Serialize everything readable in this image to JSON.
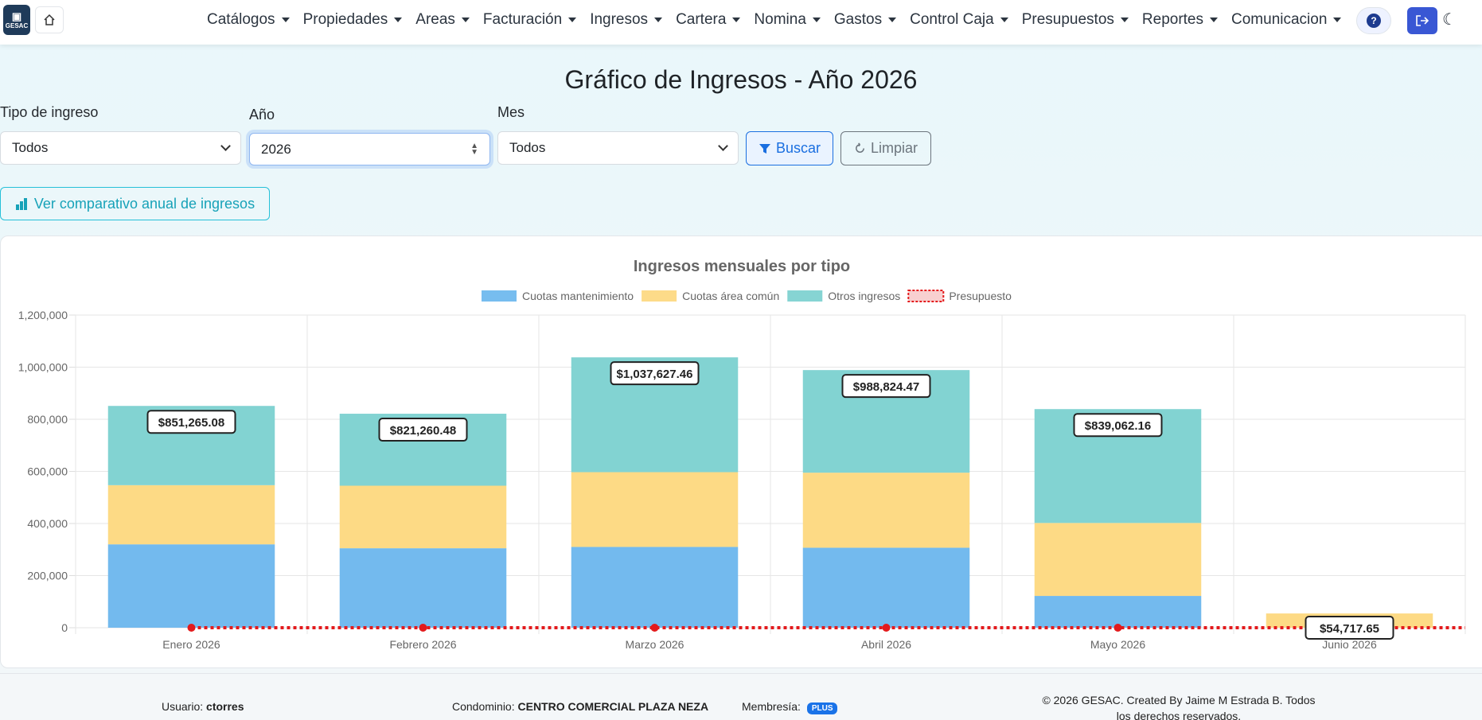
{
  "nav": {
    "brand": "GESAC",
    "menu": [
      "Catálogos",
      "Propiedades",
      "Areas",
      "Facturación",
      "Ingresos",
      "Cartera",
      "Nomina",
      "Gastos",
      "Control Caja",
      "Presupuestos",
      "Reportes",
      "Comunicacion"
    ],
    "help": "?"
  },
  "header": {
    "title": "Gráfico de Ingresos - Año 2026"
  },
  "filters": {
    "tipo_label": "Tipo de ingreso",
    "tipo_value": "Todos",
    "anio_label": "Año",
    "anio_value": "2026",
    "mes_label": "Mes",
    "mes_value": "Todos",
    "buscar": "Buscar",
    "limpiar": "Limpiar",
    "comparativo": "Ver comparativo anual de ingresos"
  },
  "colors": {
    "cuotas_mantenimiento": "#70b9ee",
    "cuotas_area_comun": "#fdd983",
    "otros_ingresos": "#80d2d1",
    "presupuesto": "#e31a1c"
  },
  "chart_data": {
    "type": "bar",
    "stacked": true,
    "title": "Ingresos mensuales por tipo",
    "categories": [
      "Enero 2026",
      "Febrero 2026",
      "Marzo 2026",
      "Abril 2026",
      "Mayo 2026",
      "Junio 2026"
    ],
    "series": [
      {
        "name": "Cuotas mantenimiento",
        "values": [
          320000,
          305000,
          310000,
          307000,
          122000,
          0
        ]
      },
      {
        "name": "Cuotas área común",
        "values": [
          227000,
          240000,
          287000,
          288000,
          280000,
          54718
        ]
      },
      {
        "name": "Otros ingresos",
        "values": [
          304265,
          276260,
          440627,
          393824,
          437062,
          0
        ]
      },
      {
        "name": "Presupuesto",
        "type": "line",
        "style": "dotted",
        "values": [
          0,
          0,
          0,
          0,
          0,
          0
        ]
      }
    ],
    "totals": [
      "$851,265.08",
      "$821,260.48",
      "$1,037,627.46",
      "$988,824.47",
      "$839,062.16",
      "$54,717.65"
    ],
    "ylim": [
      0,
      1200000
    ],
    "yticks": [
      "0",
      "200,000",
      "400,000",
      "600,000",
      "800,000",
      "1,000,000",
      "1,200,000"
    ],
    "legend": "top",
    "grid": true
  },
  "footer": {
    "usuario_label": "Usuario:",
    "usuario": "ctorres",
    "condominio_label": "Condominio:",
    "condominio": "CENTRO COMERCIAL PLAZA NEZA",
    "membresia_label": "Membresía:",
    "membresia": "PLUS",
    "copyright_1": "© 2026 GESAC. Created By Jaime M Estrada B. Todos",
    "copyright_2": "los derechos reservados."
  }
}
